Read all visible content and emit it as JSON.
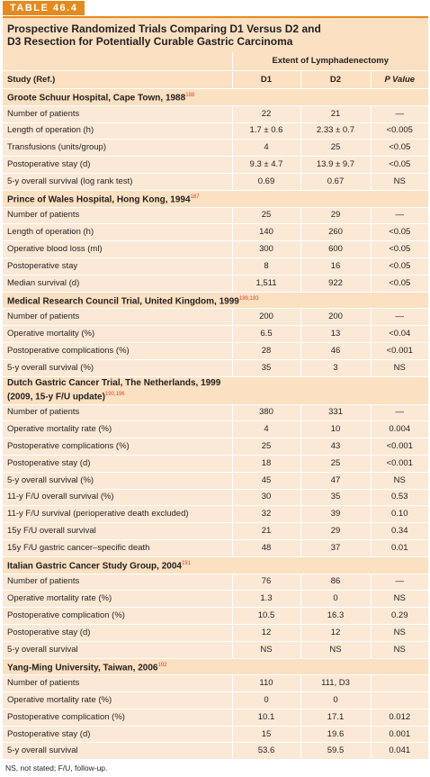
{
  "table_label": "TABLE 46.4",
  "caption": [
    "Prospective Randomized Trials Comparing D1 Versus D2 and",
    "D3 Resection for Potentially Curable Gastric Carcinoma"
  ],
  "header": {
    "extent": "Extent of Lymphadenectomy",
    "study": "Study (Ref.)",
    "d1": "D1",
    "d2": "D2",
    "p": "P Value"
  },
  "groups": [
    {
      "title": "Groote Schuur Hospital, Cape Town, 1988",
      "ref": "188",
      "rows": [
        [
          "Number of patients",
          "22",
          "21",
          "—"
        ],
        [
          "Length of operation (h)",
          "1.7 ± 0.6",
          "2.33 ± 0.7",
          "<0.005"
        ],
        [
          "Transfusions (units/group)",
          "4",
          "25",
          "<0.05"
        ],
        [
          "Postoperative stay (d)",
          "9.3 ± 4.7",
          "13.9 ± 9.7",
          "<0.05"
        ],
        [
          "5-y overall survival (log rank test)",
          "0.69",
          "0.67",
          "NS"
        ]
      ]
    },
    {
      "title": "Prince of Wales Hospital, Hong Kong, 1994",
      "ref": "187",
      "rows": [
        [
          "Number of patients",
          "25",
          "29",
          "—"
        ],
        [
          "Length of operation (h)",
          "140",
          "260",
          "<0.05"
        ],
        [
          "Operative blood loss (ml)",
          "300",
          "600",
          "<0.05"
        ],
        [
          "Postoperative stay",
          "8",
          "16",
          "<0.05"
        ],
        [
          "Median survival (d)",
          "1,511",
          "922",
          "<0.05"
        ]
      ]
    },
    {
      "title": "Medical Research Council Trial, United Kingdom, 1999",
      "ref": "189,193",
      "rows": [
        [
          "Number of patients",
          "200",
          "200",
          "—"
        ],
        [
          "Operative mortality (%)",
          "6.5",
          "13",
          "<0.04"
        ],
        [
          "Postoperative complications (%)",
          "28",
          "46",
          "<0.001"
        ],
        [
          "5-y overall survival (%)",
          "35",
          "3",
          "NS"
        ]
      ]
    },
    {
      "title": "Dutch Gastric Cancer Trial, The Netherlands, 1999",
      "title2": "(2009, 15-y F/U update)",
      "ref": "190,196",
      "rows": [
        [
          "Number of patients",
          "380",
          "331",
          "—"
        ],
        [
          "Operative mortality rate (%)",
          "4",
          "10",
          "0.004"
        ],
        [
          "Postoperative complications (%)",
          "25",
          "43",
          "<0.001"
        ],
        [
          "Postoperative stay (d)",
          "18",
          "25",
          "<0.001"
        ],
        [
          "5-y overall survival (%)",
          "45",
          "47",
          "NS"
        ],
        [
          "11-y F/U overall survival (%)",
          "30",
          "35",
          "0.53"
        ],
        [
          "11-y F/U survival (perioperative death excluded)",
          "32",
          "39",
          "0.10"
        ],
        [
          "15y F/U overall survival",
          "21",
          "29",
          "0.34"
        ],
        [
          "15y F/U gastric cancer–specific death",
          "48",
          "37",
          "0.01"
        ]
      ]
    },
    {
      "title": "Italian Gastric Cancer Study Group, 2004",
      "ref": "191",
      "rows": [
        [
          "Number of patients",
          "76",
          "86",
          "—"
        ],
        [
          "Operative mortality rate (%)",
          "1.3",
          "0",
          "NS"
        ],
        [
          "Postoperative complication (%)",
          "10.5",
          "16.3",
          "0.29"
        ],
        [
          "Postoperative stay (d)",
          "12",
          "12",
          "NS"
        ],
        [
          "5-y overall survival",
          "NS",
          "NS",
          "NS"
        ]
      ]
    },
    {
      "title": "Yang-Ming University, Taiwan, 2006",
      "ref": "192",
      "rows": [
        [
          "Number of patients",
          "110",
          "111, D3",
          ""
        ],
        [
          "Operative mortality rate (%)",
          "0",
          "0",
          ""
        ],
        [
          "Postoperative complication (%)",
          "10.1",
          "17.1",
          "0.012"
        ],
        [
          "Postoperative stay (d)",
          "15",
          "19.6",
          "0.001"
        ],
        [
          "5-y overall survival",
          "53.6",
          "59.5",
          "0.041"
        ]
      ]
    }
  ],
  "footnote": "NS, not stated; F/U, follow-up.",
  "colors": {
    "accent": "#e58a1f",
    "header_fill": "#fbe0c2",
    "body_fill": "#fbe9d6",
    "reference": "#d6492a"
  }
}
